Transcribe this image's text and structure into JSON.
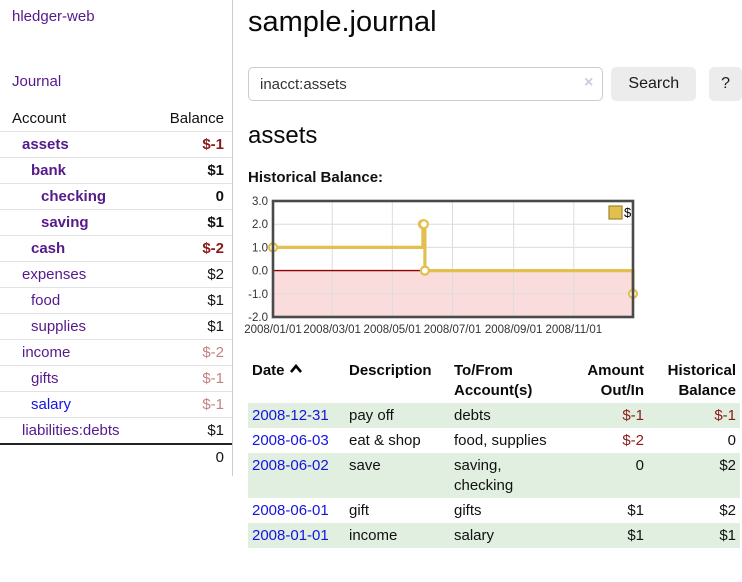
{
  "app": {
    "title": "hledger-web"
  },
  "sidebar": {
    "journal_link": "Journal",
    "accounts_table": {
      "headers": {
        "account": "Account",
        "balance": "Balance"
      },
      "rows": [
        {
          "name": "assets",
          "indent": 1,
          "balance": "$-1",
          "bold": true,
          "balance_color": "negative-strong",
          "link_color": "purple"
        },
        {
          "name": "bank",
          "indent": 2,
          "balance": "$1",
          "bold": true,
          "balance_color": "normal",
          "link_color": "purple"
        },
        {
          "name": "checking",
          "indent": 3,
          "balance": "0",
          "bold": true,
          "balance_color": "normal",
          "link_color": "purple"
        },
        {
          "name": "saving",
          "indent": 3,
          "balance": "$1",
          "bold": true,
          "balance_color": "normal",
          "link_color": "purple"
        },
        {
          "name": "cash",
          "indent": 2,
          "balance": "$-2",
          "bold": true,
          "balance_color": "negative-strong",
          "link_color": "purple"
        },
        {
          "name": "expenses",
          "indent": 1,
          "balance": "$2",
          "bold": false,
          "balance_color": "normal",
          "link_color": "purple"
        },
        {
          "name": "food",
          "indent": 2,
          "balance": "$1",
          "bold": false,
          "balance_color": "normal",
          "link_color": "purple"
        },
        {
          "name": "supplies",
          "indent": 2,
          "balance": "$1",
          "bold": false,
          "balance_color": "normal",
          "link_color": "purple"
        },
        {
          "name": "income",
          "indent": 1,
          "balance": "$-2",
          "bold": false,
          "balance_color": "negative-muted",
          "link_color": "purple"
        },
        {
          "name": "gifts",
          "indent": 2,
          "balance": "$-1",
          "bold": false,
          "balance_color": "negative-muted",
          "link_color": "purple"
        },
        {
          "name": "salary",
          "indent": 2,
          "balance": "$-1",
          "bold": false,
          "balance_color": "negative-muted",
          "link_color": "blue"
        },
        {
          "name": "liabilities:debts",
          "indent": 1,
          "balance": "$1",
          "bold": false,
          "balance_color": "normal",
          "link_color": "purple"
        }
      ],
      "total": "0"
    }
  },
  "header": {
    "title": "sample.journal"
  },
  "search": {
    "value": "inacct:assets",
    "clear_icon": "×",
    "button": "Search",
    "help_button": "?"
  },
  "account_page": {
    "title": "assets",
    "chart_label": "Historical Balance:"
  },
  "chart_data": {
    "type": "line",
    "step": true,
    "series": [
      {
        "name": "$",
        "points": [
          [
            "2008-01-01",
            1
          ],
          [
            "2008-06-01",
            2
          ],
          [
            "2008-06-02",
            2
          ],
          [
            "2008-06-03",
            0
          ],
          [
            "2008-12-31",
            -1
          ]
        ]
      }
    ],
    "x_range": [
      "2008-01-01",
      "2008-12-31"
    ],
    "ylim": [
      -2,
      3
    ],
    "yticks": [
      3,
      2,
      1,
      0,
      -1,
      -2
    ],
    "ytick_labels": [
      "3.0",
      "2.0",
      "1.0",
      "0.0",
      "-1.0",
      "-2.0"
    ],
    "xticks": [
      "2008-01-01",
      "2008-03-01",
      "2008-05-01",
      "2008-07-01",
      "2008-09-01",
      "2008-11-01"
    ],
    "xtick_labels": [
      "2008/01/01",
      "2008/03/01",
      "2008/05/01",
      "2008/07/01",
      "2008/09/01",
      "2008/11/01"
    ],
    "legend": {
      "label": "$",
      "position": "top-right"
    },
    "grid": true
  },
  "table": {
    "headers": {
      "date": "Date",
      "description": "Description",
      "tofrom": "To/From Account(s)",
      "amount": "Amount Out/In",
      "balance": "Historical Balance"
    },
    "sort": {
      "column": "date",
      "direction": "ascending"
    },
    "rows": [
      {
        "date": "2008-12-31",
        "description": "pay off",
        "accounts": "debts",
        "amount": "$-1",
        "amount_negative": true,
        "balance": "$-1",
        "balance_negative": true
      },
      {
        "date": "2008-06-03",
        "description": "eat & shop",
        "accounts": "food, supplies",
        "amount": "$-2",
        "amount_negative": true,
        "balance": "0",
        "balance_negative": false
      },
      {
        "date": "2008-06-02",
        "description": "save",
        "accounts": "saving, checking",
        "amount": "0",
        "amount_negative": false,
        "balance": "$2",
        "balance_negative": false
      },
      {
        "date": "2008-06-01",
        "description": "gift",
        "accounts": "gifts",
        "amount": "$1",
        "amount_negative": false,
        "balance": "$2",
        "balance_negative": false
      },
      {
        "date": "2008-01-01",
        "description": "income",
        "accounts": "salary",
        "amount": "$1",
        "amount_negative": false,
        "balance": "$1",
        "balance_negative": false
      }
    ]
  },
  "colors": {
    "link_purple": "#551a8b",
    "link_blue": "#1414e0",
    "negative_strong": "#8b1a1a",
    "negative_muted": "#c28383",
    "row_green": "#e0efe0",
    "chart_line": "#e3bf4f",
    "chart_line_border": "#a3852c",
    "chart_negative_fill": "#fbdcdc",
    "chart_zero_line": "#8b0000",
    "chart_grid": "#dcdcdc",
    "chart_border": "#4a4a4a",
    "button_bg": "#ececec",
    "clear_icon": "#d2c9e0"
  }
}
